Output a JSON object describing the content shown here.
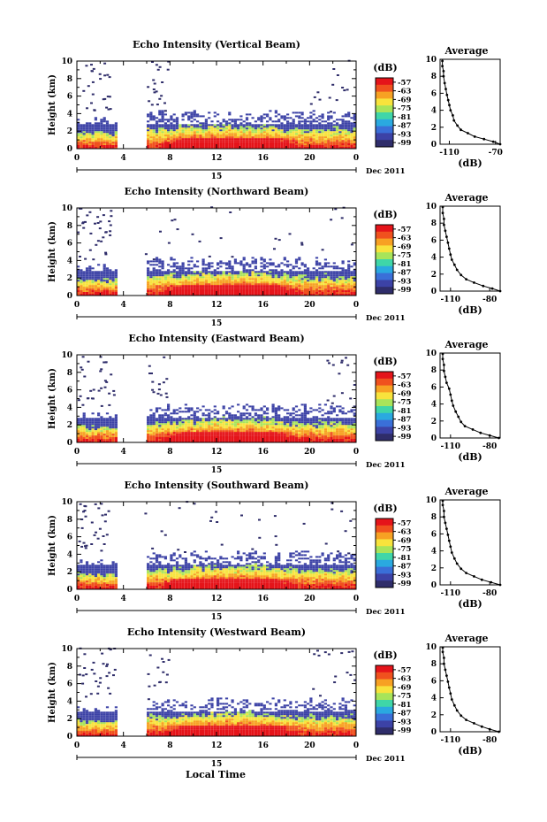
{
  "figure": {
    "xlabel": "Local Time",
    "date_label": "15",
    "month_label": "Dec 2011",
    "colorbar_title": "(dB)",
    "colorbar_ticks": [
      "-57",
      "-63",
      "-69",
      "-75",
      "-81",
      "-87",
      "-93",
      "-99"
    ],
    "colorbar_colors": [
      "#e5141a",
      "#f0511e",
      "#f7a123",
      "#f8e33c",
      "#a8e45a",
      "#3fd6a8",
      "#2aa9e0",
      "#3a6fd8",
      "#3c42a6",
      "#2f2d6a"
    ],
    "profile_title": "Average",
    "profile_xlabel": "(dB)"
  },
  "chart_data": [
    {
      "type": "heatmap",
      "title": "Echo Intensity (Vertical Beam)",
      "ylabel": "Height (km)",
      "x_ticks": [
        "0",
        "4",
        "8",
        "12",
        "16",
        "20",
        "0"
      ],
      "y_ticks": [
        "0",
        "2",
        "4",
        "6",
        "8",
        "10"
      ],
      "xlim": [
        0,
        24
      ],
      "ylim": [
        0,
        10
      ],
      "gap_hours": [
        3.5,
        5.8
      ],
      "profile": {
        "x_ticks": [
          "-110",
          "-70"
        ],
        "xlim": [
          -118,
          -66
        ],
        "points": [
          [
            -66,
            0
          ],
          [
            -72,
            0.3
          ],
          [
            -80,
            0.6
          ],
          [
            -88,
            0.9
          ],
          [
            -94,
            1.3
          ],
          [
            -100,
            1.7
          ],
          [
            -103,
            2.2
          ],
          [
            -106,
            2.8
          ],
          [
            -107,
            3.4
          ],
          [
            -109,
            4
          ],
          [
            -110,
            4.6
          ],
          [
            -111,
            5.2
          ],
          [
            -112,
            5.8
          ],
          [
            -113,
            6.5
          ],
          [
            -114,
            7.2
          ],
          [
            -115,
            8
          ],
          [
            -115,
            8.6
          ],
          [
            -116,
            9.2
          ],
          [
            -116,
            9.8
          ]
        ]
      }
    },
    {
      "type": "heatmap",
      "title": "Echo Intensity (Northward Beam)",
      "ylabel": "Height (km)",
      "x_ticks": [
        "0",
        "4",
        "8",
        "12",
        "16",
        "20",
        "0"
      ],
      "y_ticks": [
        "0",
        "2",
        "4",
        "6",
        "8",
        "10"
      ],
      "xlim": [
        0,
        24
      ],
      "ylim": [
        0,
        10
      ],
      "gap_hours": [
        3.5,
        5.8
      ],
      "profile": {
        "x_ticks": [
          "-110",
          "-80"
        ],
        "xlim": [
          -118,
          -72
        ],
        "points": [
          [
            -72,
            0
          ],
          [
            -78,
            0.3
          ],
          [
            -85,
            0.6
          ],
          [
            -92,
            1
          ],
          [
            -98,
            1.4
          ],
          [
            -102,
            1.9
          ],
          [
            -105,
            2.5
          ],
          [
            -107,
            3.1
          ],
          [
            -109,
            3.7
          ],
          [
            -110,
            4.3
          ],
          [
            -111,
            5
          ],
          [
            -112,
            5.7
          ],
          [
            -113,
            6.4
          ],
          [
            -114,
            7.1
          ],
          [
            -115,
            7.8
          ],
          [
            -115,
            8.5
          ],
          [
            -116,
            9.2
          ],
          [
            -116,
            9.9
          ]
        ]
      }
    },
    {
      "type": "heatmap",
      "title": "Echo Intensity (Eastward Beam)",
      "ylabel": "Height (km)",
      "x_ticks": [
        "0",
        "4",
        "8",
        "12",
        "16",
        "20",
        "0"
      ],
      "y_ticks": [
        "0",
        "2",
        "4",
        "6",
        "8",
        "10"
      ],
      "xlim": [
        0,
        24
      ],
      "ylim": [
        0,
        10
      ],
      "gap_hours": [
        3.5,
        5.8
      ],
      "profile": {
        "x_ticks": [
          "-110",
          "-80"
        ],
        "xlim": [
          -118,
          -72
        ],
        "points": [
          [
            -73,
            0
          ],
          [
            -80,
            0.3
          ],
          [
            -87,
            0.6
          ],
          [
            -93,
            1
          ],
          [
            -99,
            1.4
          ],
          [
            -102,
            1.9
          ],
          [
            -104,
            2.5
          ],
          [
            -106,
            3.1
          ],
          [
            -108,
            3.8
          ],
          [
            -109,
            4.4
          ],
          [
            -110,
            5.1
          ],
          [
            -111,
            5.8
          ],
          [
            -113,
            6.5
          ],
          [
            -114,
            7.2
          ],
          [
            -115,
            7.9
          ],
          [
            -115,
            8.6
          ],
          [
            -116,
            9.3
          ],
          [
            -116,
            9.9
          ]
        ]
      }
    },
    {
      "type": "heatmap",
      "title": "Echo Intensity (Southward Beam)",
      "ylabel": "Height (km)",
      "x_ticks": [
        "0",
        "4",
        "8",
        "12",
        "16",
        "20",
        "0"
      ],
      "y_ticks": [
        "0",
        "2",
        "4",
        "6",
        "8",
        "10"
      ],
      "xlim": [
        0,
        24
      ],
      "ylim": [
        0,
        10
      ],
      "gap_hours": [
        3.5,
        5.8
      ],
      "profile": {
        "x_ticks": [
          "-110",
          "-80"
        ],
        "xlim": [
          -118,
          -72
        ],
        "points": [
          [
            -72,
            0
          ],
          [
            -79,
            0.3
          ],
          [
            -86,
            0.6
          ],
          [
            -92,
            1
          ],
          [
            -98,
            1.4
          ],
          [
            -102,
            1.9
          ],
          [
            -105,
            2.5
          ],
          [
            -107,
            3.1
          ],
          [
            -109,
            3.8
          ],
          [
            -110,
            4.5
          ],
          [
            -111,
            5.2
          ],
          [
            -112,
            5.9
          ],
          [
            -113,
            6.6
          ],
          [
            -114,
            7.3
          ],
          [
            -115,
            8
          ],
          [
            -115,
            8.7
          ],
          [
            -116,
            9.4
          ],
          [
            -116,
            9.9
          ]
        ]
      }
    },
    {
      "type": "heatmap",
      "title": "Echo Intensity (Westward Beam)",
      "ylabel": "Height (km)",
      "x_ticks": [
        "0",
        "4",
        "8",
        "12",
        "16",
        "20",
        "0"
      ],
      "y_ticks": [
        "0",
        "2",
        "4",
        "6",
        "8",
        "10"
      ],
      "xlim": [
        0,
        24
      ],
      "ylim": [
        0,
        10
      ],
      "gap_hours": [
        3.5,
        5.8
      ],
      "profile": {
        "x_ticks": [
          "-110",
          "-80"
        ],
        "xlim": [
          -118,
          -72
        ],
        "points": [
          [
            -73,
            0
          ],
          [
            -80,
            0.3
          ],
          [
            -86,
            0.6
          ],
          [
            -92,
            1
          ],
          [
            -98,
            1.4
          ],
          [
            -102,
            1.9
          ],
          [
            -105,
            2.5
          ],
          [
            -107,
            3.1
          ],
          [
            -109,
            3.8
          ],
          [
            -110,
            4.5
          ],
          [
            -111,
            5.2
          ],
          [
            -112,
            5.9
          ],
          [
            -113,
            6.6
          ],
          [
            -114,
            7.3
          ],
          [
            -115,
            8
          ],
          [
            -115,
            8.7
          ],
          [
            -116,
            9.4
          ],
          [
            -116,
            9.9
          ]
        ]
      }
    }
  ]
}
